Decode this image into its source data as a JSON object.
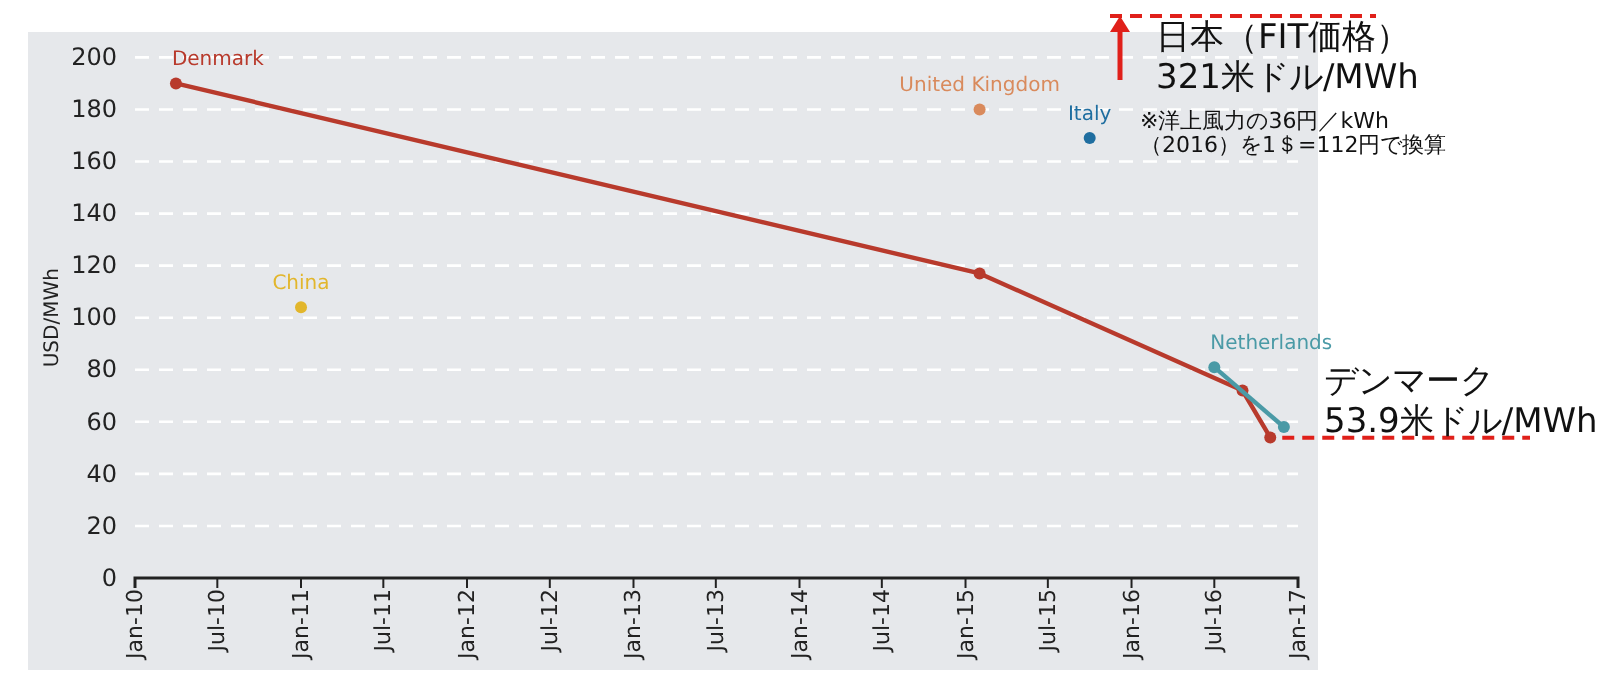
{
  "chart_data": {
    "type": "line",
    "ylabel": "USD/MWh",
    "xlim": [
      "2010-01",
      "2017-01"
    ],
    "xticks": [
      {
        "value": "2010-01",
        "label": "Jan-10"
      },
      {
        "value": "2010-07",
        "label": "Jul-10"
      },
      {
        "value": "2011-01",
        "label": "Jan-11"
      },
      {
        "value": "2011-07",
        "label": "Jul-11"
      },
      {
        "value": "2012-01",
        "label": "Jan-12"
      },
      {
        "value": "2012-07",
        "label": "Jul-12"
      },
      {
        "value": "2013-01",
        "label": "Jan-13"
      },
      {
        "value": "2013-07",
        "label": "Jul-13"
      },
      {
        "value": "2014-01",
        "label": "Jan-14"
      },
      {
        "value": "2014-07",
        "label": "Jul-14"
      },
      {
        "value": "2015-01",
        "label": "Jan-15"
      },
      {
        "value": "2015-07",
        "label": "Jul-15"
      },
      {
        "value": "2016-01",
        "label": "Jan-16"
      },
      {
        "value": "2016-07",
        "label": "Jul-16"
      },
      {
        "value": "2017-01",
        "label": "Jan-17"
      }
    ],
    "ylim": [
      0,
      200
    ],
    "yticks": [
      0,
      20,
      40,
      60,
      80,
      100,
      120,
      140,
      160,
      180,
      200
    ],
    "grid": "y",
    "marker": "circle",
    "line_style": "solid",
    "series": [
      {
        "name": "Denmark",
        "color": "#b83a2c",
        "x": [
          "2010-04",
          "2015-02",
          "2016-09",
          "2016-11"
        ],
        "values": [
          190,
          117,
          72,
          54
        ]
      },
      {
        "name": "Netherlands",
        "color": "#4a9aa6",
        "x": [
          "2016-07",
          "2016-12"
        ],
        "values": [
          81,
          58
        ]
      },
      {
        "name": "China",
        "type": "scatter",
        "color": "#e2b62c",
        "x": [
          "2011-01"
        ],
        "values": [
          104
        ]
      },
      {
        "name": "United Kingdom",
        "type": "scatter",
        "color": "#d98a5c",
        "x": [
          "2015-02"
        ],
        "values": [
          180
        ]
      },
      {
        "name": "Italy",
        "type": "scatter",
        "color": "#1f6ea0",
        "x": [
          "2015-10"
        ],
        "values": [
          169
        ]
      }
    ],
    "annotations": [
      "日本（FIT価格）\n321米ドル/MWh",
      "※洋上風力の36円／kWh\n（2016）を1＄=112円で換算",
      {
        "text": "デンマーク\n53.9米ドル/MWh",
        "x": "2016-11",
        "y": 53.9
      }
    ]
  }
}
